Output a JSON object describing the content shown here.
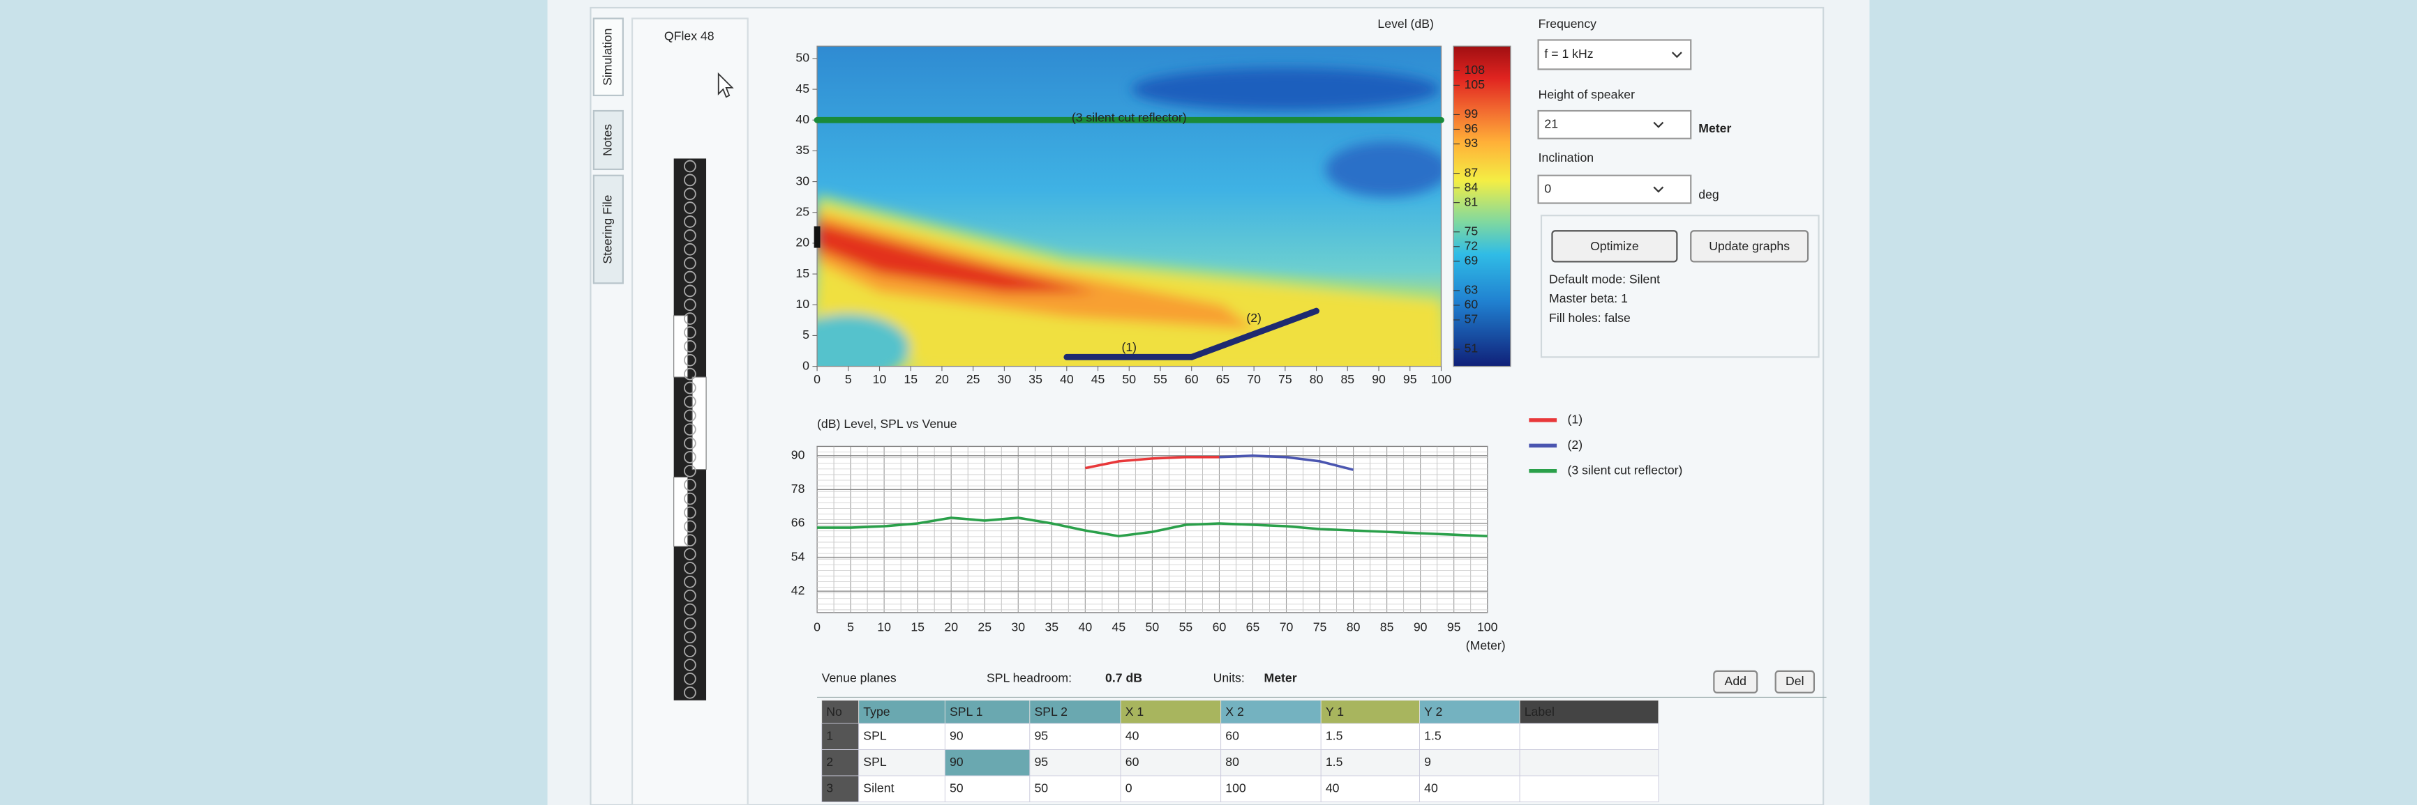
{
  "tabs": [
    "Simulation",
    "Notes",
    "Steering File"
  ],
  "speaker_panel": {
    "title": "QFlex 48"
  },
  "heatmap": {
    "title": "Level (dB)",
    "xlim": [
      0,
      100
    ],
    "ylim": [
      0,
      52
    ],
    "xticks": [
      0,
      5,
      10,
      15,
      20,
      25,
      30,
      35,
      40,
      45,
      50,
      55,
      60,
      65,
      70,
      75,
      80,
      85,
      90,
      95,
      100
    ],
    "yticks": [
      0,
      5,
      10,
      15,
      20,
      25,
      30,
      35,
      40,
      45,
      50
    ],
    "colorbar": {
      "lim": [
        47.5,
        113
      ],
      "ticks": [
        51,
        57,
        60,
        63,
        69,
        72,
        75,
        81,
        84,
        87,
        93,
        96,
        99,
        105,
        108
      ]
    }
  },
  "controls": {
    "frequency_label": "Frequency",
    "frequency": "f = 1 kHz",
    "height_label": "Height of speaker",
    "height": 21,
    "height_unit": "Meter",
    "inclination_label": "Inclination",
    "inclination": 0,
    "inclination_unit": "deg",
    "optimize": "Optimize",
    "update": "Update graphs",
    "status": [
      "Default mode: Silent",
      "Master beta: 1",
      "Fill holes: false"
    ]
  },
  "line_chart": {
    "type": "line",
    "title": "(dB) Level, SPL vs Venue",
    "x_unit": "(Meter)",
    "xlim": [
      0,
      100
    ],
    "ylim": [
      34.4,
      93.3
    ],
    "xticks": [
      0,
      5,
      10,
      15,
      20,
      25,
      30,
      35,
      40,
      45,
      50,
      55,
      60,
      65,
      70,
      75,
      80,
      85,
      90,
      95,
      100
    ],
    "yticks": [
      42,
      54,
      66,
      78,
      90
    ],
    "grid": true,
    "series": [
      {
        "name": "(1)",
        "color": "#e8383a",
        "x": [
          40,
          45,
          50,
          55,
          60
        ],
        "values": [
          85.6,
          88,
          89,
          89.5,
          89.5
        ]
      },
      {
        "name": "(2)",
        "color": "#4a55b0",
        "x": [
          60,
          65,
          70,
          75,
          80
        ],
        "values": [
          89.5,
          90,
          89.5,
          88,
          85
        ]
      },
      {
        "name": "(3 silent cut reflector)",
        "color": "#2aa04a",
        "x": [
          0,
          5,
          10,
          15,
          20,
          25,
          30,
          35,
          40,
          45,
          50,
          55,
          60,
          65,
          70,
          75,
          80,
          85,
          90,
          95,
          100
        ],
        "values": [
          64.5,
          64.5,
          65,
          66,
          68,
          67,
          68,
          66,
          63.5,
          61.5,
          63,
          65.5,
          66,
          65.5,
          65,
          64,
          63.5,
          63,
          62.5,
          62,
          61.5
        ]
      }
    ]
  },
  "venue": {
    "title": "Venue planes",
    "headroom_label": "SPL headroom:",
    "headroom": "0.7 dB",
    "units_label": "Units:",
    "units": "Meter",
    "add": "Add",
    "del": "Del"
  },
  "table": {
    "columns": [
      "No",
      "Type",
      "SPL 1",
      "SPL 2",
      "X 1",
      "X 2",
      "Y 1",
      "Y 2",
      "Label"
    ],
    "rows": [
      [
        1,
        "SPL",
        90,
        95,
        40,
        60,
        1.5,
        1.5
      ],
      [
        2,
        "SPL",
        90,
        95,
        60,
        80,
        1.5,
        9
      ],
      [
        3,
        "Silent",
        50,
        50,
        0,
        100,
        40,
        40
      ]
    ]
  }
}
